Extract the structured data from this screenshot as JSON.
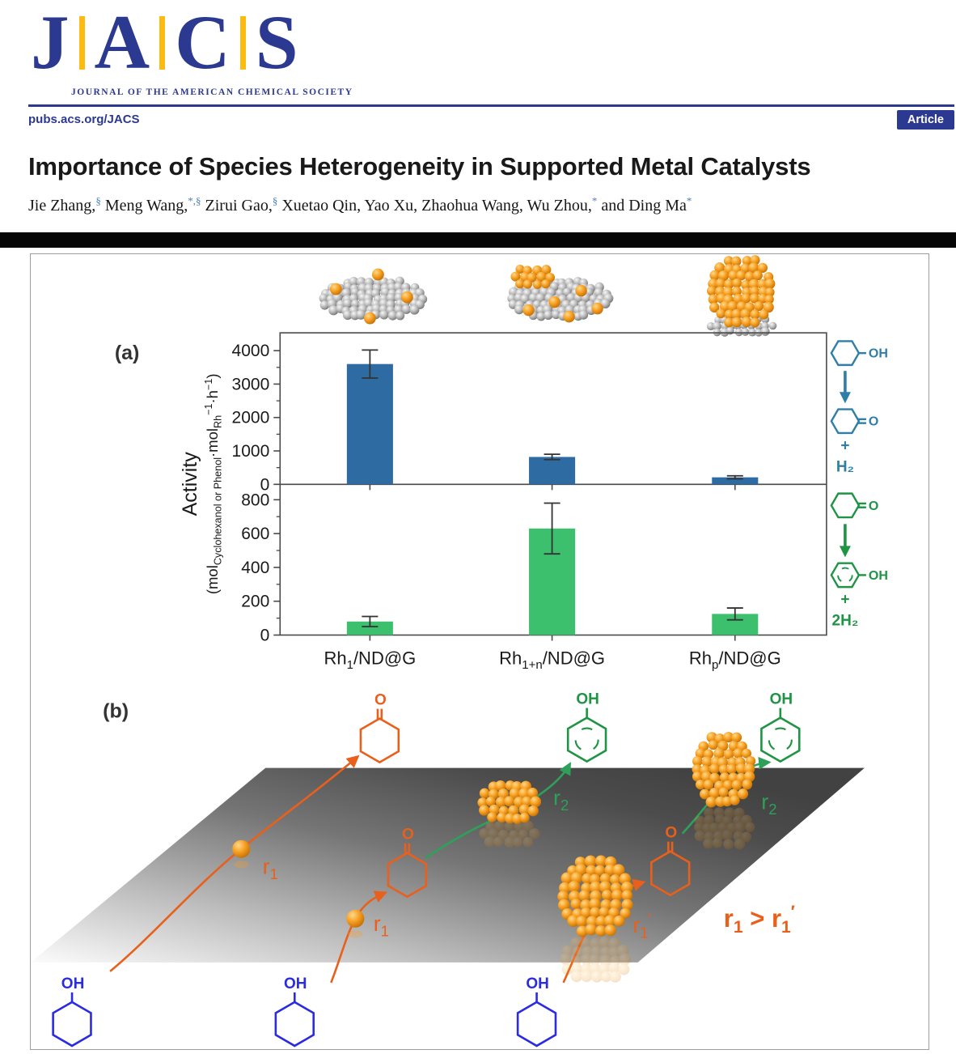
{
  "header": {
    "logo_letters": [
      "J",
      "A",
      "C",
      "S"
    ],
    "logo_subtitle": "JOURNAL OF THE AMERICAN CHEMICAL SOCIETY",
    "site_url": "pubs.acs.org/JACS",
    "badge_label": "Article",
    "brand_navy": "#2b3990",
    "brand_gold": "#fdbb11"
  },
  "article": {
    "title": "Importance of Species Heterogeneity in Supported Metal Catalysts",
    "authors": [
      {
        "name": "Jie Zhang,",
        "mark": "§"
      },
      {
        "name": " Meng Wang,",
        "mark": "*,§"
      },
      {
        "name": " Zirui Gao,",
        "mark": "§"
      },
      {
        "name": " Xuetao Qin,",
        "mark": ""
      },
      {
        "name": " Yao Xu,",
        "mark": ""
      },
      {
        "name": " Zhaohua Wang,",
        "mark": ""
      },
      {
        "name": " Wu Zhou,",
        "mark": "*"
      },
      {
        "name": " and Ding Ma",
        "mark": "*"
      }
    ]
  },
  "figure": {
    "panel_a_label": "(a)",
    "panel_b_label": "(b)"
  },
  "chart_data": {
    "type": "bar",
    "title": "Activity of Rh species on ND@G in cyclohexanol and cyclohexanone dehydrogenation",
    "categories": [
      {
        "base": "Rh",
        "sub": "1",
        "rest": "/ND@G"
      },
      {
        "base": "Rh",
        "sub": "1+n",
        "rest": "/ND@G"
      },
      {
        "base": "Rh",
        "sub": "p",
        "rest": "/ND@G"
      }
    ],
    "ylabel": "Activity",
    "ylabel_unit_parts": [
      {
        "t": "(mol"
      },
      {
        "t": "Cyclohexanol or Phenol",
        "sub": true
      },
      {
        "t": "·mol"
      },
      {
        "t": "Rh",
        "sub": true
      },
      {
        "t": "−1",
        "sup": true
      },
      {
        "t": "·h"
      },
      {
        "t": "−1",
        "sup": true
      },
      {
        "t": ")"
      }
    ],
    "grid": false,
    "legend": null,
    "panels": [
      {
        "name": "cyclohexanol-dehydrogenation-top-panel",
        "bar_color": "#2f6ba3",
        "values": [
          3600,
          820,
          210
        ],
        "errors": [
          420,
          80,
          45
        ],
        "ticks": [
          0,
          1000,
          2000,
          3000,
          4000
        ],
        "minor_ticks": [
          500,
          1500,
          2500,
          3500
        ],
        "ylim": [
          0,
          4530
        ]
      },
      {
        "name": "cyclohexanone-dehydrogenation-bottom-panel",
        "bar_color": "#3cc06e",
        "values": [
          80,
          630,
          125
        ],
        "errors": [
          30,
          150,
          35
        ],
        "ticks": [
          0,
          200,
          400,
          600,
          800
        ],
        "minor_ticks": [
          100,
          300,
          500,
          700
        ],
        "ylim": [
          0,
          895
        ]
      }
    ]
  },
  "reaction_schemes": {
    "top": {
      "color": "#2e7ea8",
      "reactant": "cyclohexanol",
      "product": "cyclohexanone",
      "oh_label": "OH",
      "o_label": "O",
      "plus": "+",
      "hydrogen": "H₂"
    },
    "bottom": {
      "color": "#1f9445",
      "reactant": "cyclohexanone",
      "product": "phenol",
      "oh_label": "OH",
      "o_label": "O",
      "plus": "+",
      "hydrogen": "2H₂"
    }
  },
  "panel_b": {
    "oh_label": "OH",
    "o_label": "O",
    "r1_parts": [
      {
        "t": "r"
      },
      {
        "t": "1",
        "sub": true
      }
    ],
    "r2_parts": [
      {
        "t": "r"
      },
      {
        "t": "2",
        "sub": true
      }
    ],
    "r1_prime_parts": [
      {
        "t": "r"
      },
      {
        "t": "1",
        "sub": true
      },
      {
        "t": "′",
        "sup": true
      }
    ],
    "inequality_parts": [
      {
        "t": "r"
      },
      {
        "t": "1",
        "sub": true
      },
      {
        "t": " > r"
      },
      {
        "t": "1",
        "sub": true
      },
      {
        "t": "′",
        "sup": true
      }
    ],
    "colors": {
      "orange": "#e8601c",
      "green": "#2fa05a",
      "phenol_green": "#1f9445",
      "molecule_blue": "#2b2be0"
    }
  }
}
